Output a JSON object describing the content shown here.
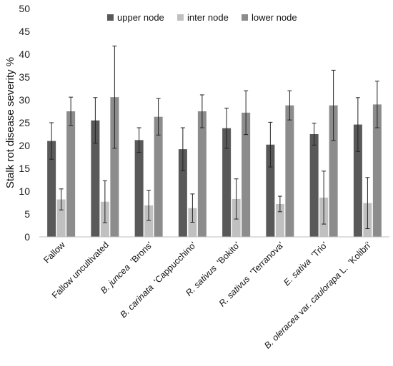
{
  "chart_data": {
    "type": "bar",
    "ylabel": "Stalk rot disease severity %",
    "ylim": [
      0,
      50
    ],
    "yticks": [
      0,
      5,
      10,
      15,
      20,
      25,
      30,
      35,
      40,
      45,
      50
    ],
    "grid": false,
    "legend_position": "top-center",
    "categories": [
      {
        "parts": [
          {
            "text": "Fallow",
            "italic": false
          }
        ]
      },
      {
        "parts": [
          {
            "text": "Fallow uncultivated",
            "italic": false
          }
        ]
      },
      {
        "parts": [
          {
            "text": "B. juncea",
            "italic": true
          },
          {
            "text": "  'Brons'",
            "italic": false
          }
        ]
      },
      {
        "parts": [
          {
            "text": "B. carinata",
            "italic": true
          },
          {
            "text": "  'Cappucchino'",
            "italic": false
          }
        ]
      },
      {
        "parts": [
          {
            "text": "R. sativus",
            "italic": true
          },
          {
            "text": "  'Bokito'",
            "italic": false
          }
        ]
      },
      {
        "parts": [
          {
            "text": "R. sativus",
            "italic": true
          },
          {
            "text": "  'Terranova'",
            "italic": false
          }
        ]
      },
      {
        "parts": [
          {
            "text": "E. sativa",
            "italic": true
          },
          {
            "text": "  'Trio'",
            "italic": false
          }
        ]
      },
      {
        "parts": [
          {
            "text": "B. oleracea",
            "italic": true
          },
          {
            "text": " var. ",
            "italic": false
          },
          {
            "text": "caulorapa",
            "italic": true
          },
          {
            "text": " L.  'Kolibri'",
            "italic": false
          }
        ]
      }
    ],
    "series": [
      {
        "name": "upper node",
        "color": "#595959",
        "values": [
          21.0,
          25.5,
          21.2,
          19.2,
          23.8,
          20.2,
          22.5,
          24.6
        ],
        "errors": [
          4.0,
          5.0,
          2.7,
          4.7,
          4.4,
          4.9,
          2.4,
          5.9
        ]
      },
      {
        "name": "inter node",
        "color": "#c0c0c0",
        "values": [
          8.2,
          7.7,
          6.9,
          6.3,
          8.3,
          7.2,
          8.6,
          7.4
        ],
        "errors": [
          2.3,
          4.6,
          3.3,
          3.1,
          4.4,
          1.7,
          5.8,
          5.6
        ]
      },
      {
        "name": "lower node",
        "color": "#8c8c8c",
        "values": [
          27.5,
          30.6,
          26.3,
          27.5,
          27.2,
          28.8,
          28.8,
          29.0
        ],
        "errors": [
          3.1,
          11.2,
          4.0,
          3.6,
          4.8,
          3.2,
          7.7,
          5.1
        ]
      }
    ]
  }
}
